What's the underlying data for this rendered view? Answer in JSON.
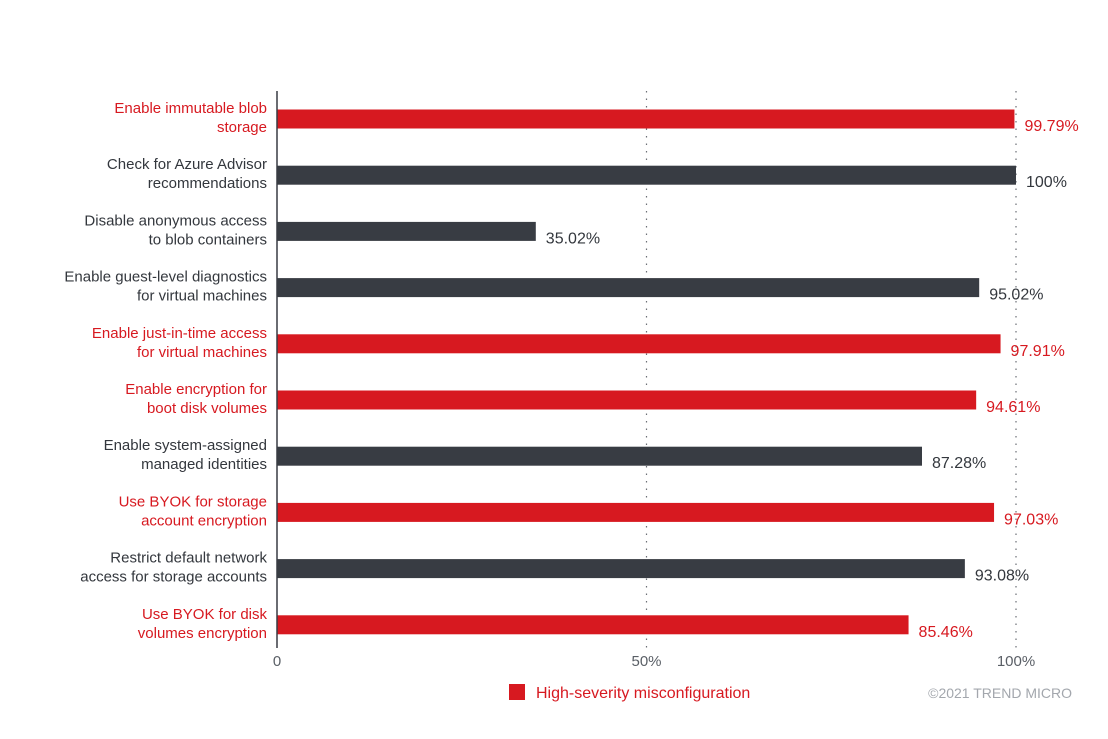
{
  "chart_data": {
    "type": "bar",
    "orientation": "horizontal",
    "categories": [
      [
        "Enable immutable blob",
        "storage"
      ],
      [
        "Check for Azure Advisor",
        "recommendations"
      ],
      [
        "Disable anonymous access",
        "to blob containers"
      ],
      [
        "Enable guest-level diagnostics",
        "for virtual machines"
      ],
      [
        "Enable just-in-time access",
        "for virtual machines"
      ],
      [
        "Enable encryption for",
        "boot disk volumes"
      ],
      [
        "Enable system-assigned",
        "managed identities"
      ],
      [
        "Use BYOK for storage",
        "account encryption"
      ],
      [
        "Restrict default network",
        "access for storage accounts"
      ],
      [
        "Use BYOK for disk",
        "volumes encryption"
      ]
    ],
    "values": [
      99.79,
      100,
      35.02,
      95.02,
      97.91,
      94.61,
      87.28,
      97.03,
      93.08,
      85.46
    ],
    "value_labels": [
      "99.79%",
      "100%",
      "35.02%",
      "95.02%",
      "97.91%",
      "94.61%",
      "87.28%",
      "97.03%",
      "93.08%",
      "85.46%"
    ],
    "high_severity": [
      true,
      false,
      false,
      false,
      true,
      true,
      false,
      true,
      false,
      true
    ],
    "xlim": [
      0,
      100
    ],
    "x_ticks": [
      0,
      50,
      100
    ],
    "x_tick_labels": [
      "0",
      "50%",
      "100%"
    ],
    "grid": "dotted vertical lines at 50% and 100%",
    "legend": {
      "label": "High-severity misconfiguration",
      "position": "bottom-center"
    },
    "colors": {
      "high": "#d71920",
      "normal": "#383c43"
    }
  },
  "copyright": "©2021 TREND MICRO"
}
